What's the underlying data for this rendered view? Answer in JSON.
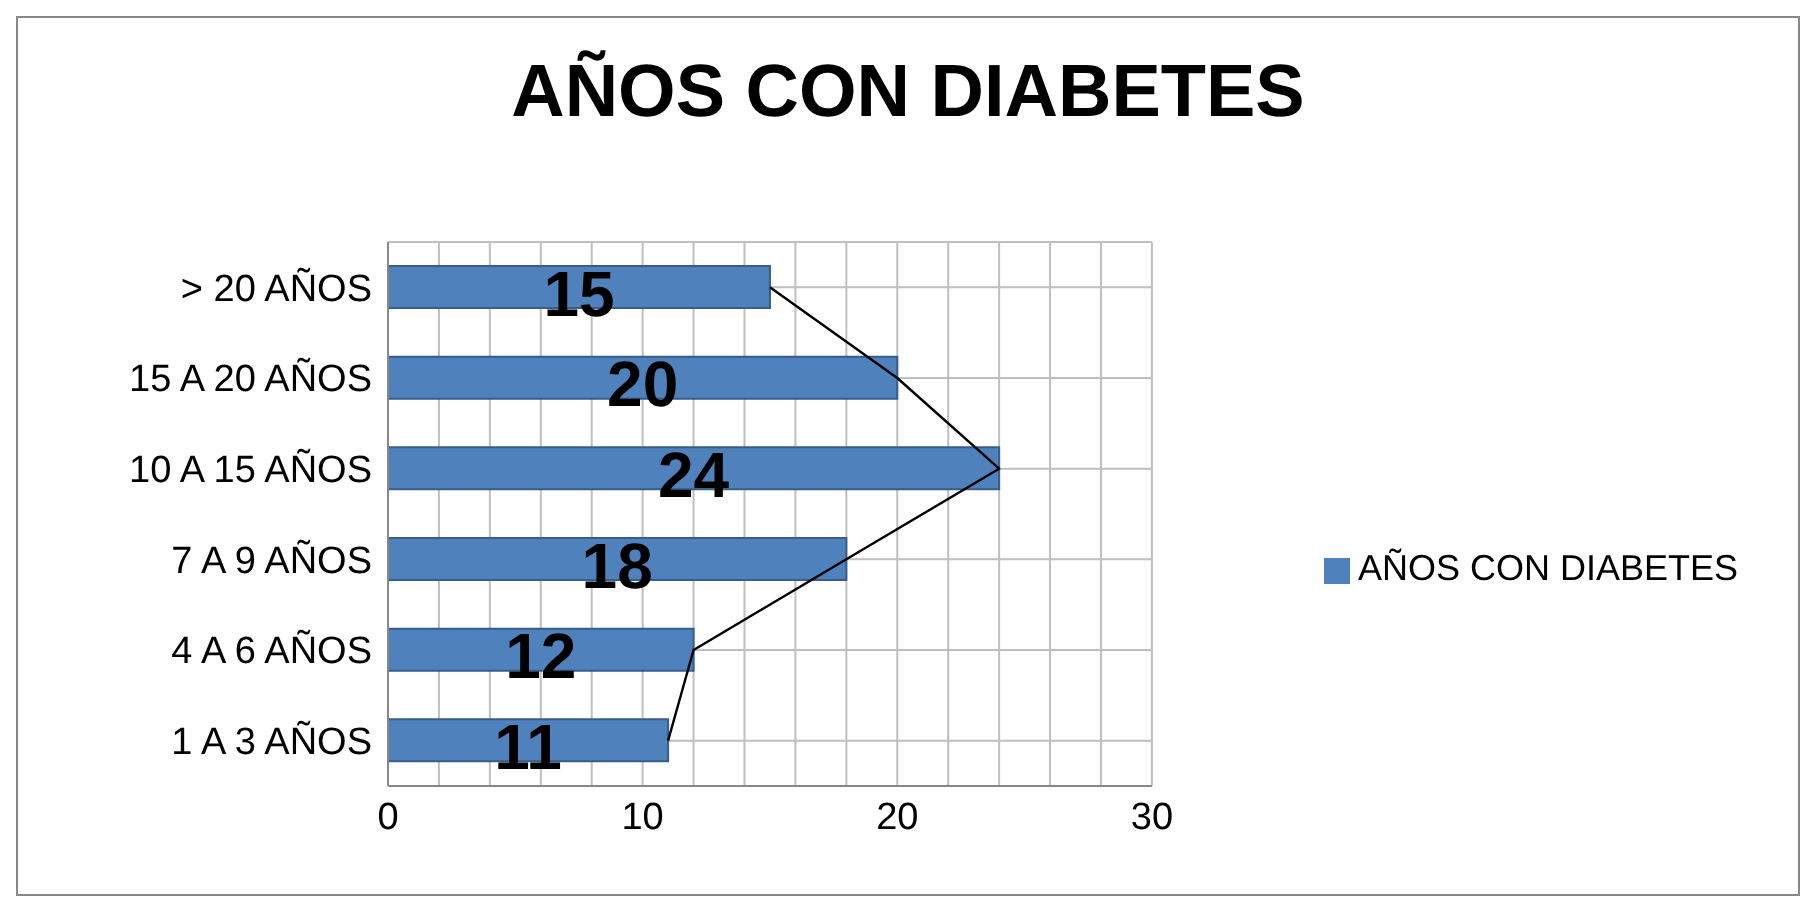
{
  "chart_data": {
    "type": "bar",
    "orientation": "horizontal",
    "title": "AÑOS CON DIABETES",
    "categories": [
      "> 20 AÑOS",
      "15 A 20 AÑOS",
      "10 A 15 AÑOS",
      "7 A 9 AÑOS",
      "4 A 6 AÑOS",
      "1 A 3 AÑOS"
    ],
    "series": [
      {
        "name": "AÑOS CON DIABETES",
        "color": "#4f81bd",
        "values": [
          15,
          20,
          24,
          18,
          12,
          11
        ],
        "value_labels": [
          "15",
          "20",
          "24",
          "18",
          "12",
          "11"
        ]
      },
      {
        "type": "line",
        "color": "#000000",
        "values": [
          15,
          20,
          24,
          18,
          12,
          11
        ]
      }
    ],
    "xlim": [
      0,
      30
    ],
    "xticks": [
      0,
      {
        "value": 2,
        "label": null
      },
      {
        "value": 4,
        "label": null
      },
      {
        "value": 6,
        "label": null
      },
      {
        "value": 8,
        "label": null
      },
      10,
      {
        "value": 12,
        "label": null
      },
      {
        "value": 14,
        "label": null
      },
      {
        "value": 16,
        "label": null
      },
      {
        "value": 18,
        "label": null
      },
      20,
      {
        "value": 22,
        "label": null
      },
      {
        "value": 24,
        "label": null
      },
      {
        "value": 26,
        "label": null
      },
      {
        "value": 28,
        "label": null
      },
      30
    ],
    "grid": true,
    "legend": "right",
    "marker": "none"
  }
}
